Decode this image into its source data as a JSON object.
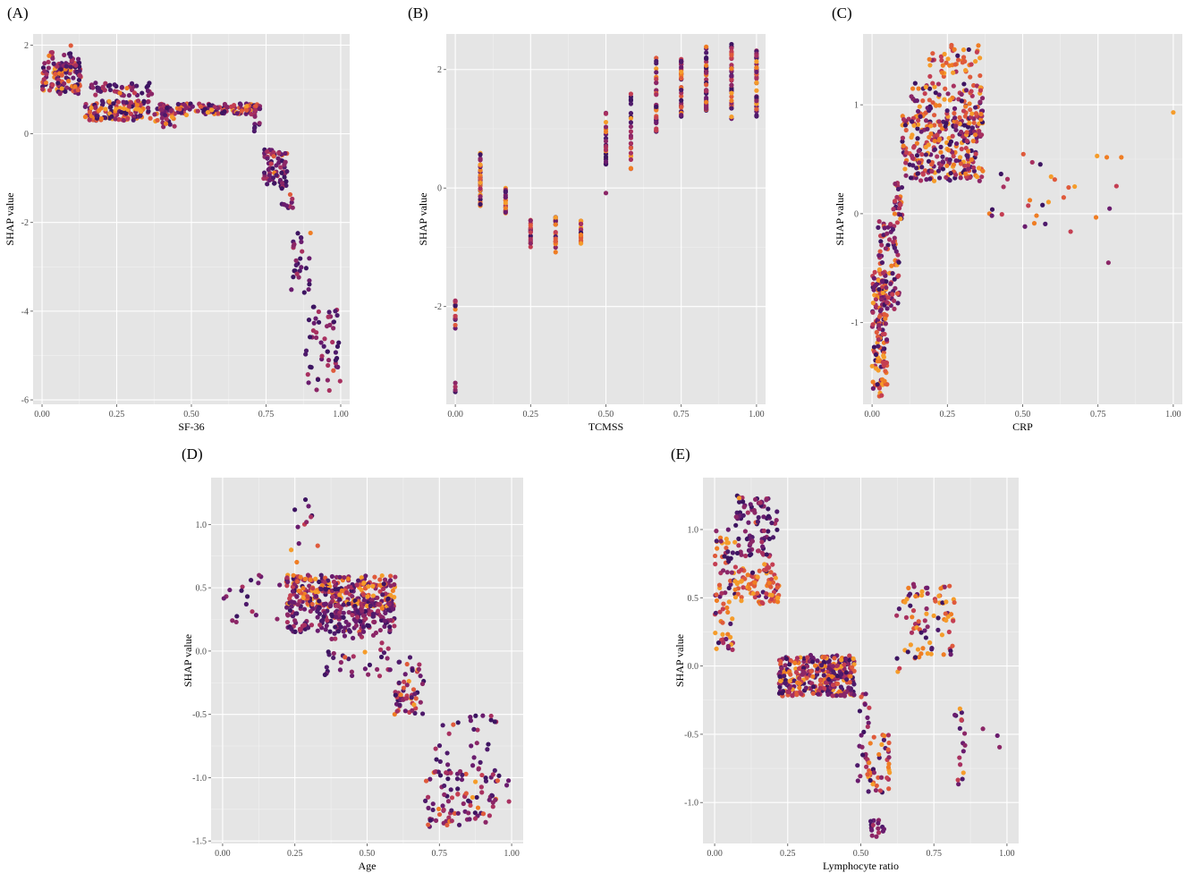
{
  "chart_data": [
    {
      "id": "A",
      "panel_label": "(A)",
      "type": "scatter",
      "xlabel": "SF-36",
      "ylabel": "SHAP value",
      "xlim": [
        -0.03,
        1.03
      ],
      "ylim": [
        -6.1,
        2.25
      ],
      "xticks": [
        0.0,
        0.25,
        0.5,
        0.75,
        1.0
      ],
      "xtick_labels": [
        "0.00",
        "0.25",
        "0.50",
        "0.75",
        "1.00"
      ],
      "yticks": [
        -6,
        -4,
        -2,
        0,
        2
      ],
      "ytick_labels": [
        "-6",
        "-4",
        "-2",
        "0",
        "2"
      ],
      "clusters": [
        {
          "x": [
            0.0,
            0.13
          ],
          "y": [
            0.9,
            1.6
          ],
          "n": 110,
          "mix": 0.3
        },
        {
          "x": [
            0.02,
            0.13
          ],
          "y": [
            1.5,
            2.0
          ],
          "n": 25,
          "mix": 0.15
        },
        {
          "x": [
            0.14,
            0.37
          ],
          "y": [
            0.3,
            0.75
          ],
          "n": 130,
          "mix": 0.4
        },
        {
          "x": [
            0.16,
            0.37
          ],
          "y": [
            0.85,
            1.15
          ],
          "n": 45,
          "mix": 0.1
        },
        {
          "x": [
            0.37,
            0.73
          ],
          "y": [
            0.42,
            0.68
          ],
          "n": 150,
          "mix": 0.35
        },
        {
          "x": [
            0.37,
            0.45
          ],
          "y": [
            0.15,
            0.45
          ],
          "n": 15,
          "mix": 0.2
        },
        {
          "x": [
            0.71,
            0.73
          ],
          "y": [
            0.0,
            0.45
          ],
          "n": 8,
          "mix": 0.1
        },
        {
          "x": [
            0.74,
            0.82
          ],
          "y": [
            -1.2,
            -0.35
          ],
          "n": 70,
          "mix": 0.2
        },
        {
          "x": [
            0.8,
            0.84
          ],
          "y": [
            -1.7,
            -1.1
          ],
          "n": 12,
          "mix": 0.1
        },
        {
          "x": [
            0.83,
            0.9
          ],
          "y": [
            -3.6,
            -2.2
          ],
          "n": 28,
          "mix": 0.1
        },
        {
          "x": [
            0.88,
            1.0
          ],
          "y": [
            -5.8,
            -3.9
          ],
          "n": 55,
          "mix": 0.05
        }
      ]
    },
    {
      "id": "B",
      "panel_label": "(B)",
      "type": "scatter",
      "xlabel": "TCMSS",
      "ylabel": "SHAP value",
      "xlim": [
        -0.03,
        1.03
      ],
      "ylim": [
        -3.65,
        2.6
      ],
      "xticks": [
        0.0,
        0.25,
        0.5,
        0.75,
        1.0
      ],
      "xtick_labels": [
        "0.00",
        "0.25",
        "0.50",
        "0.75",
        "1.00"
      ],
      "yticks": [
        -2,
        0,
        2
      ],
      "ytick_labels": [
        "-2",
        "0",
        "2"
      ],
      "clusters": [
        {
          "x": [
            0.0,
            0.0
          ],
          "y": [
            -2.4,
            -1.9
          ],
          "n": 14,
          "mix": 0.3
        },
        {
          "x": [
            0.0,
            0.0
          ],
          "y": [
            -3.45,
            -3.25
          ],
          "n": 4,
          "mix": 0.2
        },
        {
          "x": [
            0.083,
            0.083
          ],
          "y": [
            -0.3,
            0.6
          ],
          "n": 35,
          "mix": 0.55
        },
        {
          "x": [
            0.167,
            0.167
          ],
          "y": [
            -0.6,
            0.0
          ],
          "n": 18,
          "mix": 0.5
        },
        {
          "x": [
            0.25,
            0.25
          ],
          "y": [
            -1.05,
            -0.5
          ],
          "n": 18,
          "mix": 0.5
        },
        {
          "x": [
            0.333,
            0.333
          ],
          "y": [
            -1.1,
            -0.45
          ],
          "n": 20,
          "mix": 0.55
        },
        {
          "x": [
            0.417,
            0.417
          ],
          "y": [
            -1.15,
            -0.55
          ],
          "n": 20,
          "mix": 0.5
        },
        {
          "x": [
            0.5,
            0.5
          ],
          "y": [
            0.4,
            1.3
          ],
          "n": 25,
          "mix": 0.2
        },
        {
          "x": [
            0.5,
            0.5
          ],
          "y": [
            -0.1,
            -0.05
          ],
          "n": 1,
          "mix": 0.0
        },
        {
          "x": [
            0.583,
            0.583
          ],
          "y": [
            0.2,
            1.6
          ],
          "n": 25,
          "mix": 0.35
        },
        {
          "x": [
            0.667,
            0.667
          ],
          "y": [
            0.8,
            2.2
          ],
          "n": 30,
          "mix": 0.4
        },
        {
          "x": [
            0.75,
            0.75
          ],
          "y": [
            1.2,
            2.2
          ],
          "n": 40,
          "mix": 0.4
        },
        {
          "x": [
            0.833,
            0.833
          ],
          "y": [
            1.3,
            2.4
          ],
          "n": 40,
          "mix": 0.35
        },
        {
          "x": [
            0.917,
            0.917
          ],
          "y": [
            1.1,
            2.45
          ],
          "n": 40,
          "mix": 0.35
        },
        {
          "x": [
            1.0,
            1.0
          ],
          "y": [
            1.2,
            2.4
          ],
          "n": 40,
          "mix": 0.35
        }
      ]
    },
    {
      "id": "C",
      "panel_label": "(C)",
      "type": "scatter",
      "xlabel": "CRP",
      "ylabel": "SHAP value",
      "xlim": [
        -0.03,
        1.03
      ],
      "ylim": [
        -1.75,
        1.65
      ],
      "xticks": [
        0.0,
        0.25,
        0.5,
        0.75,
        1.0
      ],
      "xtick_labels": [
        "0.00",
        "0.25",
        "0.50",
        "0.75",
        "1.00"
      ],
      "yticks": [
        -1,
        0,
        1
      ],
      "ytick_labels": [
        "-1",
        "0",
        "1"
      ],
      "clusters": [
        {
          "x": [
            0.0,
            0.05
          ],
          "y": [
            -1.7,
            -0.5
          ],
          "n": 130,
          "mix": 0.6
        },
        {
          "x": [
            0.02,
            0.09
          ],
          "y": [
            -0.9,
            -0.05
          ],
          "n": 90,
          "mix": 0.35
        },
        {
          "x": [
            0.07,
            0.1
          ],
          "y": [
            -0.1,
            0.35
          ],
          "n": 25,
          "mix": 0.3
        },
        {
          "x": [
            0.1,
            0.37
          ],
          "y": [
            0.3,
            0.9
          ],
          "n": 260,
          "mix": 0.45
        },
        {
          "x": [
            0.13,
            0.37
          ],
          "y": [
            0.8,
            1.2
          ],
          "n": 110,
          "mix": 0.6
        },
        {
          "x": [
            0.19,
            0.36
          ],
          "y": [
            1.25,
            1.55
          ],
          "n": 45,
          "mix": 0.95
        },
        {
          "x": [
            0.38,
            0.83
          ],
          "y": [
            -0.2,
            0.6
          ],
          "n": 30,
          "mix": 0.5
        },
        {
          "x": [
            0.78,
            0.79
          ],
          "y": [
            -0.45,
            -0.45
          ],
          "n": 1,
          "mix": 0.0
        },
        {
          "x": [
            1.0,
            1.0
          ],
          "y": [
            0.93,
            0.93
          ],
          "n": 1,
          "mix": 1.0
        }
      ]
    },
    {
      "id": "D",
      "panel_label": "(D)",
      "type": "scatter",
      "xlabel": "Age",
      "ylabel": "SHAP value",
      "xlim": [
        -0.04,
        1.04
      ],
      "ylim": [
        -1.52,
        1.37
      ],
      "xticks": [
        0.0,
        0.25,
        0.5,
        0.75,
        1.0
      ],
      "xtick_labels": [
        "0.00",
        "0.25",
        "0.50",
        "0.75",
        "1.00"
      ],
      "yticks": [
        -1.5,
        -1.0,
        -0.5,
        0.0,
        0.5,
        1.0
      ],
      "ytick_labels": [
        "-1.5",
        "-1.0",
        "-0.5",
        "0.0",
        "0.5",
        "1.0"
      ],
      "clusters": [
        {
          "x": [
            0.0,
            0.2
          ],
          "y": [
            0.2,
            0.6
          ],
          "n": 18,
          "mix": 0.1
        },
        {
          "x": [
            0.22,
            0.6
          ],
          "y": [
            0.35,
            0.6
          ],
          "n": 300,
          "mix": 0.5
        },
        {
          "x": [
            0.22,
            0.6
          ],
          "y": [
            0.15,
            0.38
          ],
          "n": 200,
          "mix": 0.05
        },
        {
          "x": [
            0.23,
            0.33
          ],
          "y": [
            0.7,
            1.22
          ],
          "n": 12,
          "mix": 0.4
        },
        {
          "x": [
            0.35,
            0.58
          ],
          "y": [
            -0.2,
            0.15
          ],
          "n": 40,
          "mix": 0.05
        },
        {
          "x": [
            0.59,
            0.7
          ],
          "y": [
            -0.5,
            -0.05
          ],
          "n": 55,
          "mix": 0.3
        },
        {
          "x": [
            0.7,
            0.95
          ],
          "y": [
            -1.0,
            -0.5
          ],
          "n": 35,
          "mix": 0.05
        },
        {
          "x": [
            0.7,
            0.96
          ],
          "y": [
            -1.4,
            -0.95
          ],
          "n": 90,
          "mix": 0.25
        },
        {
          "x": [
            0.97,
            1.0
          ],
          "y": [
            -1.25,
            -1.0
          ],
          "n": 3,
          "mix": 0.0
        }
      ]
    },
    {
      "id": "E",
      "panel_label": "(E)",
      "type": "scatter",
      "xlabel": "Lymphocyte ratio",
      "ylabel": "SHAP value",
      "xlim": [
        -0.04,
        1.04
      ],
      "ylim": [
        -1.3,
        1.38
      ],
      "xticks": [
        0.0,
        0.25,
        0.5,
        0.75,
        1.0
      ],
      "xtick_labels": [
        "0.00",
        "0.25",
        "0.50",
        "0.75",
        "1.00"
      ],
      "yticks": [
        -1.0,
        -0.5,
        0.0,
        0.5,
        1.0
      ],
      "ytick_labels": [
        "-1.0",
        "-0.5",
        "0.0",
        "0.5",
        "1.0"
      ],
      "clusters": [
        {
          "x": [
            0.0,
            0.07
          ],
          "y": [
            0.1,
            1.0
          ],
          "n": 70,
          "mix": 0.5
        },
        {
          "x": [
            0.07,
            0.22
          ],
          "y": [
            0.45,
            0.75
          ],
          "n": 90,
          "mix": 0.9
        },
        {
          "x": [
            0.07,
            0.22
          ],
          "y": [
            0.8,
            1.25
          ],
          "n": 90,
          "mix": 0.05
        },
        {
          "x": [
            0.22,
            0.48
          ],
          "y": [
            -0.22,
            0.08
          ],
          "n": 320,
          "mix": 0.4
        },
        {
          "x": [
            0.48,
            0.53
          ],
          "y": [
            -0.95,
            -0.15
          ],
          "n": 25,
          "mix": 0.15
        },
        {
          "x": [
            0.52,
            0.6
          ],
          "y": [
            -0.95,
            -0.5
          ],
          "n": 40,
          "mix": 0.7
        },
        {
          "x": [
            0.53,
            0.58
          ],
          "y": [
            -1.25,
            -1.12
          ],
          "n": 15,
          "mix": 0.0
        },
        {
          "x": [
            0.6,
            0.65
          ],
          "y": [
            -0.2,
            0.5
          ],
          "n": 6,
          "mix": 0.1
        },
        {
          "x": [
            0.65,
            0.82
          ],
          "y": [
            0.05,
            0.6
          ],
          "n": 80,
          "mix": 0.6
        },
        {
          "x": [
            0.82,
            0.86
          ],
          "y": [
            -0.9,
            -0.3
          ],
          "n": 18,
          "mix": 0.3
        },
        {
          "x": [
            0.9,
            1.0
          ],
          "y": [
            -0.62,
            -0.45
          ],
          "n": 3,
          "mix": 0.0
        }
      ]
    }
  ]
}
